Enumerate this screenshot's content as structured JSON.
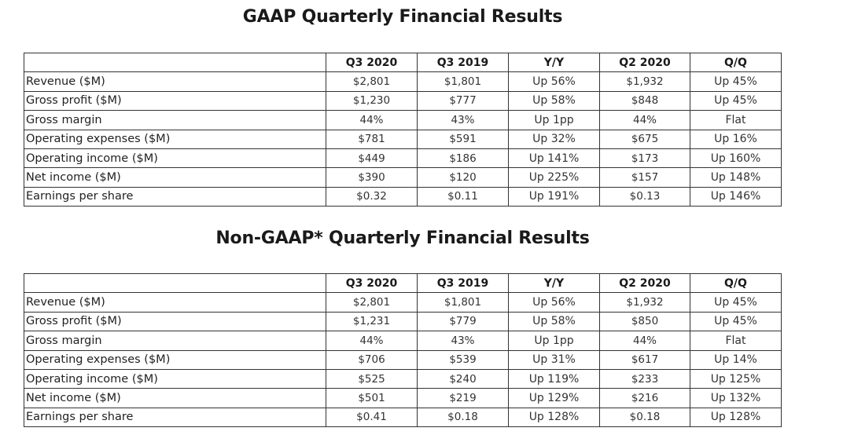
{
  "gaap": {
    "title": "GAAP Quarterly Financial Results",
    "columns": [
      "",
      "Q3 2020",
      "Q3 2019",
      "Y/Y",
      "Q2 2020",
      "Q/Q"
    ],
    "rows": [
      [
        "Revenue ($M)",
        "$2,801",
        "$1,801",
        "Up 56%",
        "$1,932",
        "Up 45%"
      ],
      [
        "Gross profit ($M)",
        "$1,230",
        "$777",
        "Up 58%",
        "$848",
        "Up 45%"
      ],
      [
        "Gross margin",
        "44%",
        "43%",
        "Up 1pp",
        "44%",
        "Flat"
      ],
      [
        "Operating expenses ($M)",
        "$781",
        "$591",
        "Up 32%",
        "$675",
        "Up 16%"
      ],
      [
        "Operating income ($M)",
        "$449",
        "$186",
        "Up 141%",
        "$173",
        "Up 160%"
      ],
      [
        "Net income ($M)",
        "$390",
        "$120",
        "Up 225%",
        "$157",
        "Up 148%"
      ],
      [
        "Earnings per share",
        "$0.32",
        "$0.11",
        "Up 191%",
        "$0.13",
        "Up 146%"
      ]
    ]
  },
  "non_gaap": {
    "title": "Non-GAAP* Quarterly Financial Results",
    "columns": [
      "",
      "Q3 2020",
      "Q3 2019",
      "Y/Y",
      "Q2 2020",
      "Q/Q"
    ],
    "rows": [
      [
        "Revenue ($M)",
        "$2,801",
        "$1,801",
        "Up 56%",
        "$1,932",
        "Up 45%"
      ],
      [
        "Gross profit ($M)",
        "$1,231",
        "$779",
        "Up 58%",
        "$850",
        "Up 45%"
      ],
      [
        "Gross margin",
        "44%",
        "43%",
        "Up 1pp",
        "44%",
        "Flat"
      ],
      [
        "Operating expenses ($M)",
        "$706",
        "$539",
        "Up 31%",
        "$617",
        "Up 14%"
      ],
      [
        "Operating income ($M)",
        "$525",
        "$240",
        "Up 119%",
        "$233",
        "Up 125%"
      ],
      [
        "Net income ($M)",
        "$501",
        "$219",
        "Up 129%",
        "$216",
        "Up 132%"
      ],
      [
        "Earnings per share",
        "$0.41",
        "$0.18",
        "Up 128%",
        "$0.18",
        "Up 128%"
      ]
    ]
  }
}
